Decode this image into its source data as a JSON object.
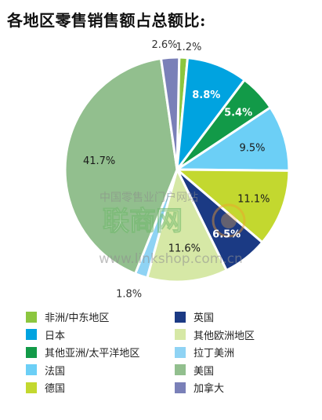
{
  "title": "各地区零售销售额占总额比:",
  "watermark": {
    "line1": "中国零售业门户网站",
    "logo": "联商网",
    "url": "www.linkshop.com.cn"
  },
  "chart_data": {
    "type": "pie",
    "title": "各地区零售销售额占总额比:",
    "slices": [
      {
        "name": "非洲/中东地区",
        "value": 1.2,
        "label": "1.2%",
        "color": "#8cc63f"
      },
      {
        "name": "日本",
        "value": 8.8,
        "label": "8.8%",
        "color": "#00a3e0"
      },
      {
        "name": "其他亚洲/太平洋地区",
        "value": 5.4,
        "label": "5.4%",
        "color": "#129a48"
      },
      {
        "name": "法国",
        "value": 9.5,
        "label": "9.5%",
        "color": "#6ccff6"
      },
      {
        "name": "德国",
        "value": 11.1,
        "label": "11.1%",
        "color": "#c3d82f"
      },
      {
        "name": "英国",
        "value": 6.5,
        "label": "6.5%",
        "color": "#1b3a84"
      },
      {
        "name": "其他欧洲地区",
        "value": 11.6,
        "label": "11.6%",
        "color": "#d6e8a6"
      },
      {
        "name": "拉丁美洲",
        "value": 1.8,
        "label": "1.8%",
        "color": "#8fd3f4"
      },
      {
        "name": "美国",
        "value": 41.7,
        "label": "41.7%",
        "color": "#92bf8e"
      },
      {
        "name": "加拿大",
        "value": 2.6,
        "label": "2.6%",
        "color": "#7a80b8"
      }
    ],
    "legend": {
      "placement": "bottom",
      "columns": [
        [
          "非洲/中东地区",
          "日本",
          "其他亚洲/太平洋地区",
          "法国",
          "德国"
        ],
        [
          "英国",
          "其他欧洲地区",
          "拉丁美洲",
          "美国",
          "加拿大"
        ]
      ]
    }
  }
}
